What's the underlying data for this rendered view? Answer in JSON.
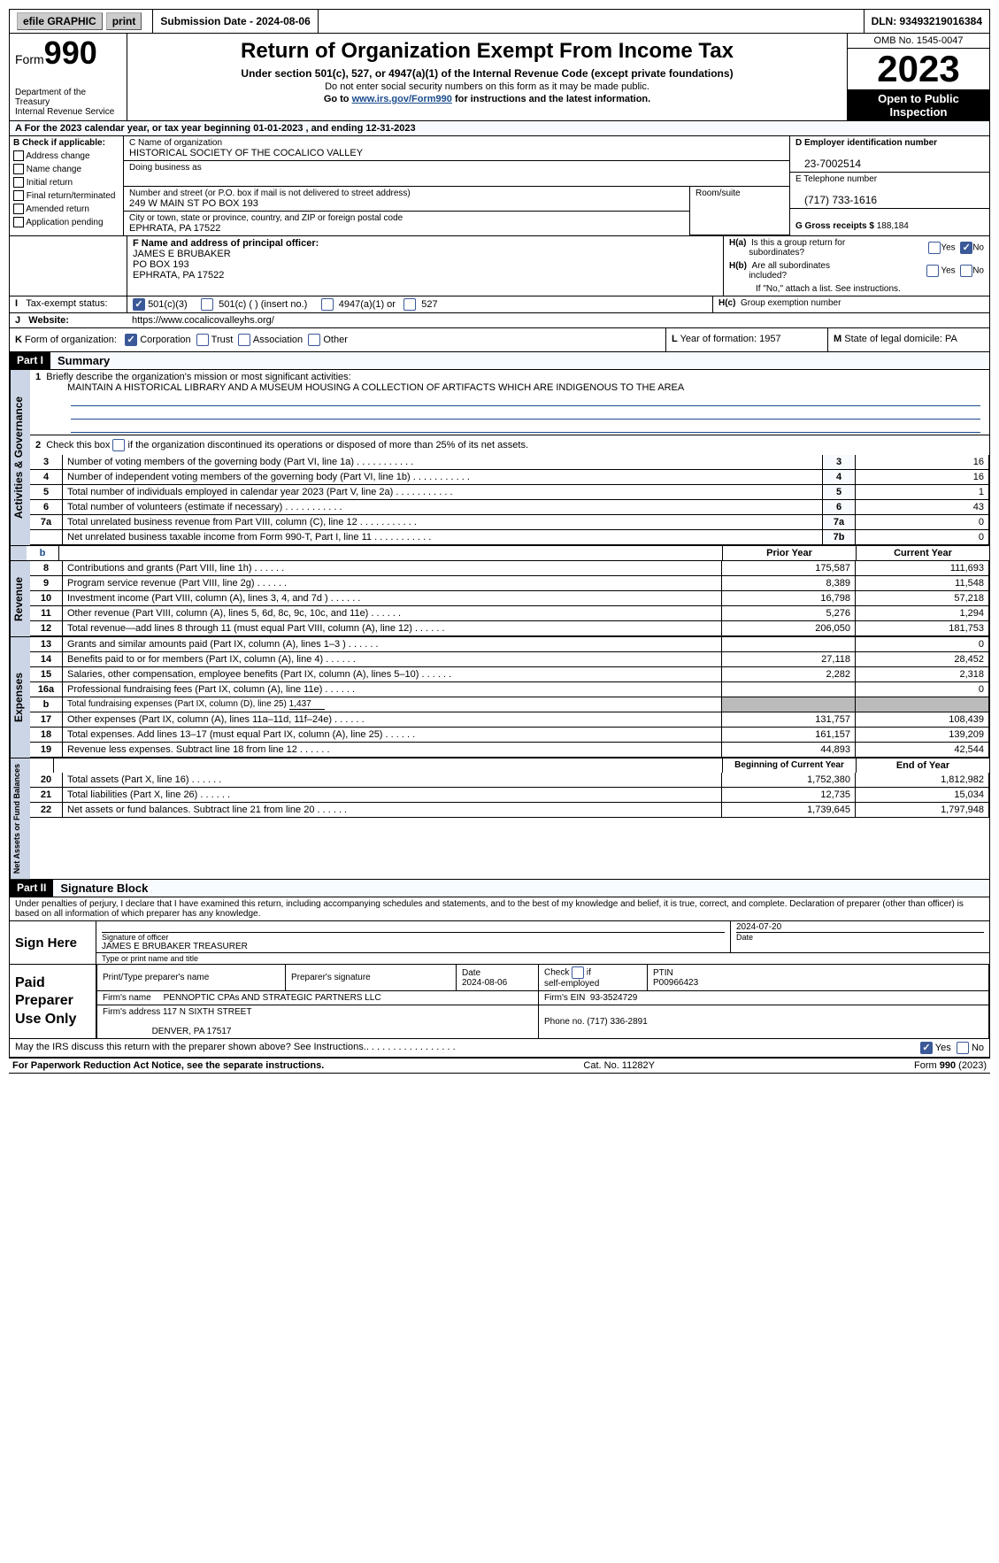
{
  "topbar": {
    "efile": "efile GRAPHIC",
    "print": "print",
    "submission": "Submission Date - 2024-08-06",
    "dln": "DLN: 93493219016384"
  },
  "header": {
    "form_label": "Form",
    "form_num": "990",
    "dept": "Department of the Treasury",
    "irs": "Internal Revenue Service",
    "title": "Return of Organization Exempt From Income Tax",
    "sub": "Under section 501(c), 527, or 4947(a)(1) of the Internal Revenue Code (except private foundations)",
    "note1": "Do not enter social security numbers on this form as it may be made public.",
    "note2_pre": "Go to ",
    "note2_link": "www.irs.gov/Form990",
    "note2_post": " for instructions and the latest information.",
    "omb": "OMB No. 1545-0047",
    "year": "2023",
    "open": "Open to Public Inspection"
  },
  "taxyear": "For the 2023 calendar year, or tax year beginning 01-01-2023    , and ending 12-31-2023",
  "boxB": {
    "title": "B Check if applicable:",
    "items": [
      "Address change",
      "Name change",
      "Initial return",
      "Final return/terminated",
      "Amended return",
      "Application pending"
    ]
  },
  "boxC": {
    "name_lbl": "C Name of organization",
    "name": "HISTORICAL SOCIETY OF THE COCALICO VALLEY",
    "dba_lbl": "Doing business as",
    "street_lbl": "Number and street (or P.O. box if mail is not delivered to street address)",
    "street": "249 W MAIN ST PO BOX 193",
    "room_lbl": "Room/suite",
    "city_lbl": "City or town, state or province, country, and ZIP or foreign postal code",
    "city": "EPHRATA, PA  17522"
  },
  "boxD": {
    "ein_lbl": "D Employer identification number",
    "ein": "23-7002514",
    "tel_lbl": "E Telephone number",
    "tel": "(717) 733-1616",
    "gross_lbl": "G Gross receipts $",
    "gross": "188,184"
  },
  "boxF": {
    "lbl": "F  Name and address of principal officer:",
    "line1": "JAMES E BRUBAKER",
    "line2": "PO BOX 193",
    "line3": "EPHRATA, PA  17522"
  },
  "boxH": {
    "a_lbl": "H(a)  Is this a group return for subordinates?",
    "b_lbl": "H(b)  Are all subordinates included?",
    "b_note": "If \"No,\" attach a list. See instructions.",
    "c_lbl": "H(c)  Group exemption number"
  },
  "boxI": {
    "lbl": "Tax-exempt status:",
    "opt1": "501(c)(3)",
    "opt2": "501(c) (  ) (insert no.)",
    "opt3": "4947(a)(1) or",
    "opt4": "527"
  },
  "boxJ": {
    "lbl": "Website:",
    "val": "https://www.cocalicovalleyhs.org/"
  },
  "boxK": {
    "lbl": "Form of organization:",
    "opts": [
      "Corporation",
      "Trust",
      "Association",
      "Other"
    ]
  },
  "boxL": {
    "lbl": "Year of formation:",
    "val": "1957"
  },
  "boxM": {
    "lbl": "State of legal domicile:",
    "val": "PA"
  },
  "part1": {
    "hdr": "Part I",
    "title": "Summary",
    "l1_lbl": "Briefly describe the organization's mission or most significant activities:",
    "l1_val": "MAINTAIN A HISTORICAL LIBRARY AND A MUSEUM HOUSING A COLLECTION OF ARTIFACTS WHICH ARE INDIGENOUS TO THE AREA",
    "l2": "Check this box        if the organization discontinued its operations or disposed of more than 25% of its net assets.",
    "rows_gov": [
      {
        "n": "3",
        "lbl": "Number of voting members of the governing body (Part VI, line 1a)",
        "box": "3",
        "v": "16"
      },
      {
        "n": "4",
        "lbl": "Number of independent voting members of the governing body (Part VI, line 1b)",
        "box": "4",
        "v": "16"
      },
      {
        "n": "5",
        "lbl": "Total number of individuals employed in calendar year 2023 (Part V, line 2a)",
        "box": "5",
        "v": "1"
      },
      {
        "n": "6",
        "lbl": "Total number of volunteers (estimate if necessary)",
        "box": "6",
        "v": "43"
      },
      {
        "n": "7a",
        "lbl": "Total unrelated business revenue from Part VIII, column (C), line 12",
        "box": "7a",
        "v": "0"
      },
      {
        "n": "",
        "lbl": "Net unrelated business taxable income from Form 990-T, Part I, line 11",
        "box": "7b",
        "v": "0"
      }
    ],
    "col_prior": "Prior Year",
    "col_current": "Current Year",
    "rows_rev": [
      {
        "n": "8",
        "lbl": "Contributions and grants (Part VIII, line 1h)",
        "p": "175,587",
        "c": "111,693"
      },
      {
        "n": "9",
        "lbl": "Program service revenue (Part VIII, line 2g)",
        "p": "8,389",
        "c": "11,548"
      },
      {
        "n": "10",
        "lbl": "Investment income (Part VIII, column (A), lines 3, 4, and 7d )",
        "p": "16,798",
        "c": "57,218"
      },
      {
        "n": "11",
        "lbl": "Other revenue (Part VIII, column (A), lines 5, 6d, 8c, 9c, 10c, and 11e)",
        "p": "5,276",
        "c": "1,294"
      },
      {
        "n": "12",
        "lbl": "Total revenue—add lines 8 through 11 (must equal Part VIII, column (A), line 12)",
        "p": "206,050",
        "c": "181,753"
      }
    ],
    "rows_exp": [
      {
        "n": "13",
        "lbl": "Grants and similar amounts paid (Part IX, column (A), lines 1–3 )",
        "p": "",
        "c": "0"
      },
      {
        "n": "14",
        "lbl": "Benefits paid to or for members (Part IX, column (A), line 4)",
        "p": "27,118",
        "c": "28,452"
      },
      {
        "n": "15",
        "lbl": "Salaries, other compensation, employee benefits (Part IX, column (A), lines 5–10)",
        "p": "2,282",
        "c": "2,318"
      },
      {
        "n": "16a",
        "lbl": "Professional fundraising fees (Part IX, column (A), line 11e)",
        "p": "",
        "c": "0"
      },
      {
        "n": "b",
        "lbl": "Total fundraising expenses (Part IX, column (D), line 25) ",
        "fund": "1,437",
        "grey": true
      },
      {
        "n": "17",
        "lbl": "Other expenses (Part IX, column (A), lines 11a–11d, 11f–24e)",
        "p": "131,757",
        "c": "108,439"
      },
      {
        "n": "18",
        "lbl": "Total expenses. Add lines 13–17 (must equal Part IX, column (A), line 25)",
        "p": "161,157",
        "c": "139,209"
      },
      {
        "n": "19",
        "lbl": "Revenue less expenses. Subtract line 18 from line 12",
        "p": "44,893",
        "c": "42,544"
      }
    ],
    "col_beg": "Beginning of Current Year",
    "col_end": "End of Year",
    "rows_net": [
      {
        "n": "20",
        "lbl": "Total assets (Part X, line 16)",
        "p": "1,752,380",
        "c": "1,812,982"
      },
      {
        "n": "21",
        "lbl": "Total liabilities (Part X, line 26)",
        "p": "12,735",
        "c": "15,034"
      },
      {
        "n": "22",
        "lbl": "Net assets or fund balances. Subtract line 21 from line 20",
        "p": "1,739,645",
        "c": "1,797,948"
      }
    ],
    "vtab_gov": "Activities & Governance",
    "vtab_rev": "Revenue",
    "vtab_exp": "Expenses",
    "vtab_net": "Net Assets or Fund Balances"
  },
  "part2": {
    "hdr": "Part II",
    "title": "Signature Block",
    "perjury": "Under penalties of perjury, I declare that I have examined this return, including accompanying schedules and statements, and to the best of my knowledge and belief, it is true, correct, and complete. Declaration of preparer (other than officer) is based on all information of which preparer has any knowledge.",
    "sign_here": "Sign Here",
    "sig_officer_lbl": "Signature of officer",
    "sig_officer": "JAMES E BRUBAKER  TREASURER",
    "sig_date": "2024-07-20",
    "sig_date_lbl": "Date",
    "name_title_lbl": "Type or print name and title",
    "paid_prep": "Paid Preparer Use Only",
    "prep_name_lbl": "Print/Type preparer's name",
    "prep_sig_lbl": "Preparer's signature",
    "prep_date_lbl": "Date",
    "prep_date": "2024-08-06",
    "prep_check_lbl": "Check         if self-employed",
    "ptin_lbl": "PTIN",
    "ptin": "P00966423",
    "firm_name_lbl": "Firm's name",
    "firm_name": "PENNOPTIC CPAs AND STRATEGIC PARTNERS LLC",
    "firm_ein_lbl": "Firm's EIN",
    "firm_ein": "93-3524729",
    "firm_addr_lbl": "Firm's address",
    "firm_addr1": "117 N SIXTH STREET",
    "firm_addr2": "DENVER, PA  17517",
    "phone_lbl": "Phone no.",
    "phone": "(717) 336-2891",
    "discuss": "May the IRS discuss this return with the preparer shown above? See Instructions."
  },
  "footer": {
    "pra": "For Paperwork Reduction Act Notice, see the separate instructions.",
    "cat": "Cat. No. 11282Y",
    "form": "Form 990 (2023)"
  },
  "yn": {
    "yes": "Yes",
    "no": "No"
  }
}
